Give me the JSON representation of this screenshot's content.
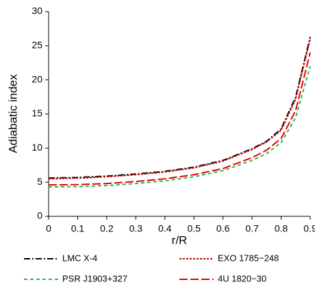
{
  "chart_data": {
    "type": "line",
    "x_label": "r/R",
    "y_label": "Adiabatic index",
    "x": [
      0,
      0.1,
      0.2,
      0.3,
      0.4,
      0.5,
      0.6,
      0.7,
      0.75,
      0.8,
      0.85,
      0.9
    ],
    "series": [
      {
        "name": "LMC X-4",
        "color": "#000000",
        "dash": "9,3,2,3",
        "values": [
          5.6,
          5.7,
          5.9,
          6.2,
          6.6,
          7.2,
          8.2,
          9.9,
          11.0,
          12.8,
          17.5,
          26.3
        ]
      },
      {
        "name": "EXO 1785−248",
        "color": "#c00000",
        "dash": "3,2",
        "values": [
          5.5,
          5.6,
          5.8,
          6.1,
          6.5,
          7.1,
          8.1,
          9.8,
          10.9,
          12.6,
          17.2,
          26.0
        ]
      },
      {
        "name": "PSR J1903+327",
        "color": "#33b050",
        "dash": "5,4",
        "values": [
          4.3,
          4.35,
          4.5,
          4.8,
          5.2,
          5.8,
          6.7,
          8.2,
          9.2,
          10.8,
          14.5,
          22.0
        ]
      },
      {
        "name": "4U 1820−30",
        "color": "#e00000",
        "dash": "12,4",
        "values": [
          4.6,
          4.65,
          4.8,
          5.1,
          5.5,
          6.1,
          7.0,
          8.6,
          9.7,
          11.4,
          15.5,
          24.0
        ]
      }
    ],
    "xlim": [
      0,
      0.9
    ],
    "xticks": [
      0,
      0.1,
      0.2,
      0.3,
      0.4,
      0.5,
      0.6,
      0.7,
      0.8,
      0.9
    ],
    "ylim": [
      0,
      30
    ],
    "yticks": [
      0,
      5,
      10,
      15,
      20,
      25,
      30
    ],
    "grid": false,
    "legend": "bottom"
  }
}
